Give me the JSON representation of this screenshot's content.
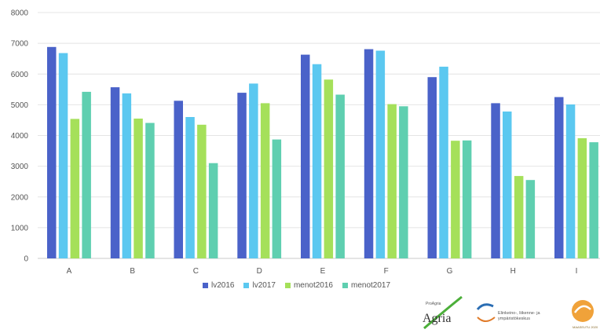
{
  "chart_data": {
    "type": "bar",
    "categories": [
      "A",
      "B",
      "C",
      "D",
      "E",
      "F",
      "G",
      "H",
      "I"
    ],
    "series": [
      {
        "name": "lv2016",
        "color": "#4a62c9",
        "values": [
          6880,
          5570,
          5130,
          5390,
          6630,
          6810,
          5900,
          5050,
          5250
        ]
      },
      {
        "name": "lv2017",
        "color": "#5bc8f0",
        "values": [
          6680,
          5370,
          4600,
          5690,
          6320,
          6760,
          6240,
          4780,
          5010
        ]
      },
      {
        "name": "menot2016",
        "color": "#a5e05a",
        "values": [
          4540,
          4550,
          4350,
          5050,
          5820,
          5020,
          3830,
          2680,
          3910
        ]
      },
      {
        "name": "menot2017",
        "color": "#5fcfb0",
        "values": [
          5420,
          4410,
          3100,
          3870,
          5330,
          4950,
          3840,
          2550,
          3780
        ]
      }
    ],
    "ylim": [
      0,
      8000
    ],
    "yticks": [
      0,
      1000,
      2000,
      3000,
      4000,
      5000,
      6000,
      7000,
      8000
    ],
    "grid": true,
    "legend_position": "bottom"
  },
  "logos": {
    "agria_small": "ProAgria",
    "agria_big": "Agria",
    "ely_line1": "Elinkeino-, liikenne- ja",
    "ely_line2": "ympäristökeskus",
    "third_small": "MAASEUTU 2020"
  }
}
